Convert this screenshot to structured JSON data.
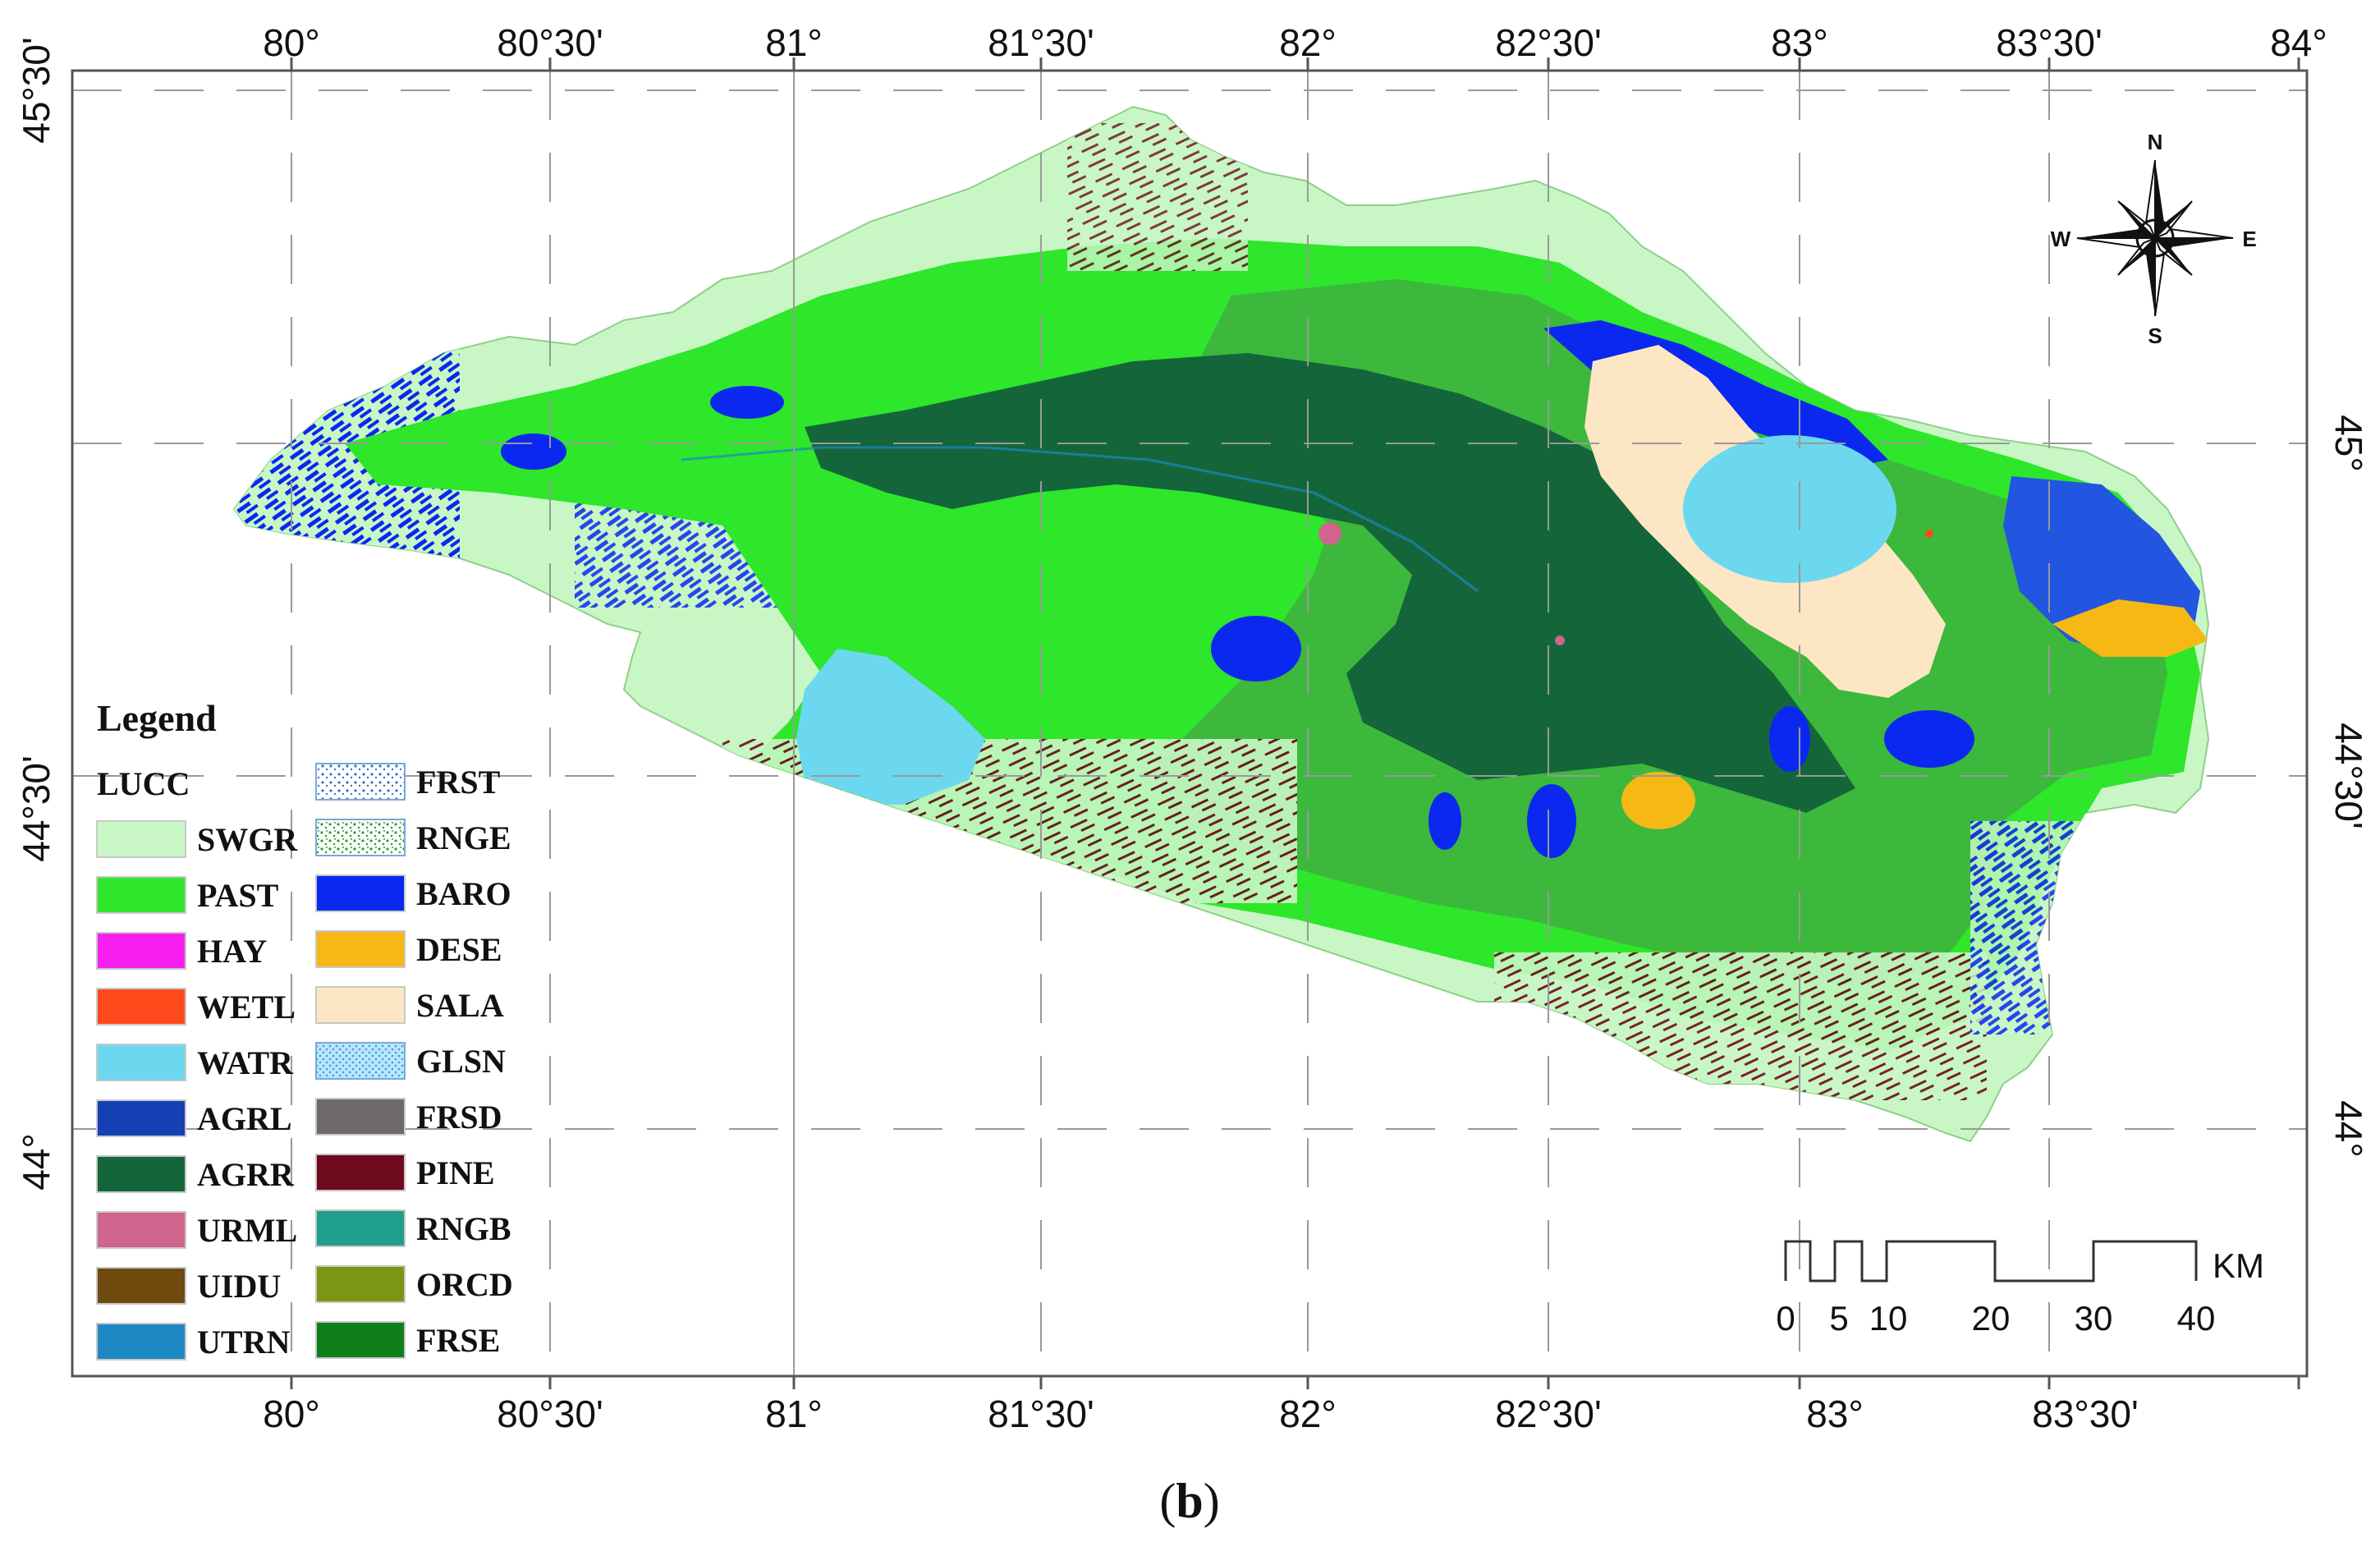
{
  "top_axis": [
    "80°",
    "80°30'",
    "81°",
    "81°30'",
    "82°",
    "82°30'",
    "83°",
    "83°30'",
    "84°"
  ],
  "bottom_axis": [
    "80°",
    "80°30'",
    "81°",
    "81°30'",
    "82°",
    "82°30'",
    "83°",
    "83°30'"
  ],
  "left_axis": [
    "45°30'",
    "44°30'",
    "44°"
  ],
  "right_axis": [
    "45°",
    "44°30'",
    "44°"
  ],
  "legend": {
    "title": "Legend",
    "subtitle": "LUCC",
    "items": [
      {
        "code": "SWGR",
        "color": "#c8f7c5",
        "pattern": "solid"
      },
      {
        "code": "PAST",
        "color": "#2ee62a",
        "pattern": "solid"
      },
      {
        "code": "HAY",
        "color": "#f71ef0",
        "pattern": "solid"
      },
      {
        "code": "WETL",
        "color": "#ff4a1c",
        "pattern": "solid"
      },
      {
        "code": "WATR",
        "color": "#6cd8f0",
        "pattern": "solid"
      },
      {
        "code": "AGRL",
        "color": "#1440b4",
        "pattern": "solid"
      },
      {
        "code": "AGRR",
        "color": "#14663a",
        "pattern": "solid"
      },
      {
        "code": "URML",
        "color": "#d0648c",
        "pattern": "solid"
      },
      {
        "code": "UIDU",
        "color": "#6e4a0e",
        "pattern": "solid"
      },
      {
        "code": "UTRN",
        "color": "#1e88c4",
        "pattern": "solid"
      },
      {
        "code": "FRST",
        "color": "#3c6ed2",
        "pattern": "dots-blue"
      },
      {
        "code": "RNGE",
        "color": "#2ea02e",
        "pattern": "dots-green"
      },
      {
        "code": "BARO",
        "color": "#0a28f0",
        "pattern": "solid"
      },
      {
        "code": "DESE",
        "color": "#f5b814",
        "pattern": "solid"
      },
      {
        "code": "SALA",
        "color": "#fde6c4",
        "pattern": "solid"
      },
      {
        "code": "GLSN",
        "color": "#7ec8f0",
        "pattern": "dots-cyan"
      },
      {
        "code": "FRSD",
        "color": "#6e6a6c",
        "pattern": "solid"
      },
      {
        "code": "PINE",
        "color": "#6e0a1e",
        "pattern": "solid"
      },
      {
        "code": "RNGB",
        "color": "#1ea08c",
        "pattern": "solid"
      },
      {
        "code": "ORCD",
        "color": "#7a9614",
        "pattern": "solid"
      },
      {
        "code": "FRSE",
        "color": "#0e7e1a",
        "pattern": "solid"
      }
    ]
  },
  "compass": {
    "n": "N",
    "s": "S",
    "e": "E",
    "w": "W"
  },
  "scale_bar": {
    "unit": "KM",
    "labels": [
      "0",
      "5",
      "10",
      "20",
      "30",
      "40"
    ]
  },
  "caption": {
    "open": "(",
    "letter": "b",
    "close": ")"
  },
  "colors": {
    "frame": "#555555",
    "grid": "#999999",
    "pasture": "#2ee62a",
    "agrr": "#14663a",
    "range_mid": "#3cb83c",
    "swgr": "#c8f7c5",
    "baro": "#0a28f0",
    "water": "#6cd8f0",
    "sala": "#fde6c4",
    "dese": "#f5b814",
    "pine": "#6e0a1e"
  }
}
